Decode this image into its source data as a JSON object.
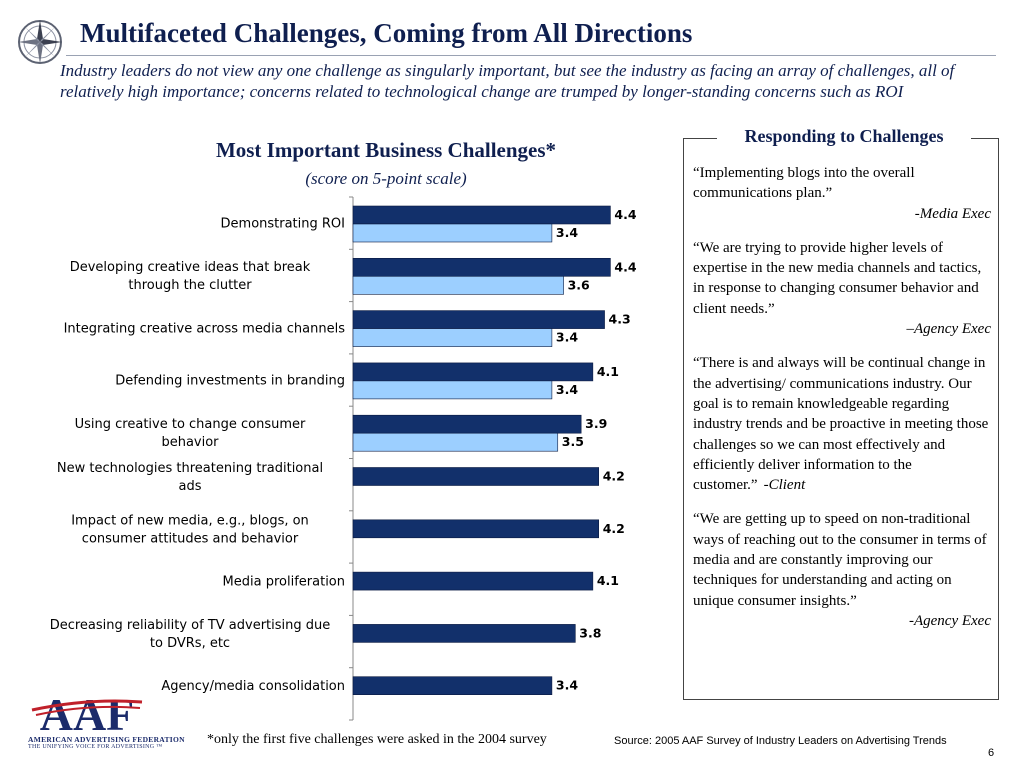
{
  "header": {
    "title": "Multifaceted Challenges, Coming from All Directions",
    "subtitle": "Industry leaders do not view any one challenge as singularly important, but see the industry as facing an array of challenges, all of relatively high importance; concerns related to technological change are trumped by longer-standing concerns such as ROI"
  },
  "chart_data": {
    "type": "bar",
    "orientation": "horizontal",
    "title": "Most Important Business Challenges*",
    "subtitle": "(score on 5-point scale)",
    "categories": [
      [
        "Demonstrating ROI"
      ],
      [
        "Developing creative ideas that break",
        "through the clutter"
      ],
      [
        "Integrating creative across media channels"
      ],
      [
        "Defending investments in branding"
      ],
      [
        "Using creative to change consumer",
        "behavior"
      ],
      [
        "New technologies threatening traditional",
        "ads"
      ],
      [
        "Impact of new media, e.g., blogs, on",
        "consumer attitudes and behavior"
      ],
      [
        "Media proliferation"
      ],
      [
        "Decreasing reliability of TV advertising due",
        "to DVRs, etc"
      ],
      [
        "Agency/media consolidation"
      ]
    ],
    "series": [
      {
        "values": [
          4.4,
          4.4,
          4.3,
          4.1,
          3.9,
          4.2,
          4.2,
          4.1,
          3.8,
          3.4
        ],
        "color": "#12306b"
      },
      {
        "values": [
          3.4,
          3.6,
          3.4,
          3.4,
          3.5,
          null,
          null,
          null,
          null,
          null
        ],
        "color": "#9ccfff"
      }
    ],
    "value_labels": [
      "4.4",
      "3.4",
      "4.4",
      "3.6",
      "4.3",
      "3.4",
      "4.1",
      "3.4",
      "3.9",
      "3.5",
      "4.2",
      "4.2",
      "4.1",
      "3.8",
      "3.4"
    ],
    "xlim": [
      0,
      5
    ],
    "grid": false,
    "legend": "none"
  },
  "footnote": "*only the first five challenges were asked in the 2004 survey",
  "source": "Source: 2005 AAF Survey of Industry Leaders on Advertising Trends",
  "page_number": "6",
  "panel": {
    "title": "Responding to Challenges",
    "quotes": [
      {
        "text": "“Implementing blogs into the overall communications plan.”",
        "attribution": "-Media Exec",
        "inline": false
      },
      {
        "text": "“We are trying to provide higher levels of expertise in the new media channels and tactics, in response to changing consumer behavior and client needs.”",
        "attribution": "–Agency Exec",
        "inline": false
      },
      {
        "text": "“There is and always will be continual change in the advertising/ communications industry. Our goal is to remain knowledgeable regarding industry trends and be proactive in meeting those challenges so we can most effectively and efficiently deliver information to the customer.”",
        "attribution": "-Client",
        "inline": true
      },
      {
        "text": "“We are getting up to speed on non-traditional ways of reaching out to the consumer in terms of media and are constantly improving our techniques for understanding and acting on unique consumer insights.”",
        "attribution": "-Agency Exec",
        "inline": false
      }
    ]
  },
  "logo": {
    "letters": "AAF",
    "name": "American Advertising Federation",
    "tagline": "The Unifying Voice For Advertising ™"
  },
  "colors": {
    "title": "#0f1f4f",
    "bar_primary": "#12306b",
    "bar_secondary": "#9ccfff",
    "logo_red": "#c0202a",
    "logo_blue": "#1b2b6b"
  },
  "icons": {
    "compass": "compass-rose-icon"
  }
}
